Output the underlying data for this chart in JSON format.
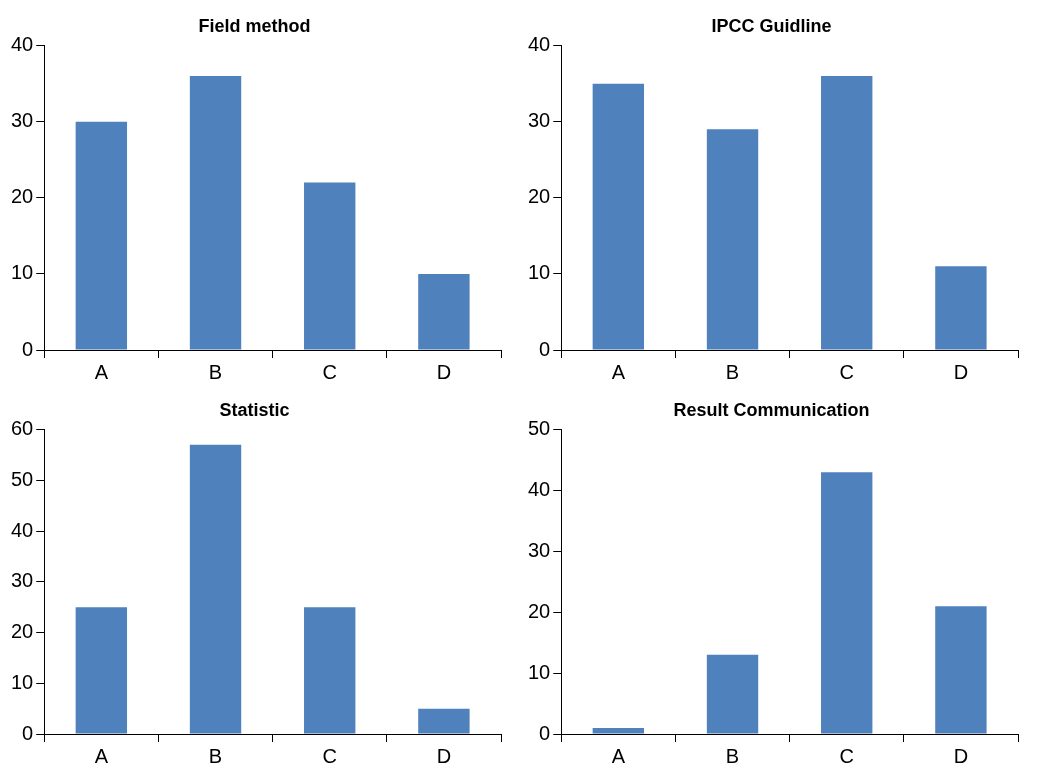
{
  "chart_data": [
    {
      "type": "bar",
      "title": "Field method",
      "categories": [
        "A",
        "B",
        "C",
        "D"
      ],
      "values": [
        30,
        36,
        22,
        10
      ],
      "color": "#4f81bd",
      "ylim": [
        0,
        40
      ],
      "yticks": [
        0,
        10,
        20,
        30,
        40
      ],
      "grid": false,
      "legend": false
    },
    {
      "type": "bar",
      "title": "IPCC Guidline",
      "categories": [
        "A",
        "B",
        "C",
        "D"
      ],
      "values": [
        35,
        29,
        36,
        11
      ],
      "color": "#4f81bd",
      "ylim": [
        0,
        40
      ],
      "yticks": [
        0,
        10,
        20,
        30,
        40
      ],
      "grid": false,
      "legend": false
    },
    {
      "type": "bar",
      "title": "Statistic",
      "categories": [
        "A",
        "B",
        "C",
        "D"
      ],
      "values": [
        25,
        57,
        25,
        5
      ],
      "color": "#4f81bd",
      "ylim": [
        0,
        60
      ],
      "yticks": [
        0,
        10,
        20,
        30,
        40,
        50,
        60
      ],
      "grid": false,
      "legend": false
    },
    {
      "type": "bar",
      "title": "Result Communication",
      "categories": [
        "A",
        "B",
        "C",
        "D"
      ],
      "values": [
        1,
        13,
        43,
        21
      ],
      "color": "#4f81bd",
      "ylim": [
        0,
        50
      ],
      "yticks": [
        0,
        10,
        20,
        30,
        40,
        50
      ],
      "grid": false,
      "legend": false
    }
  ]
}
